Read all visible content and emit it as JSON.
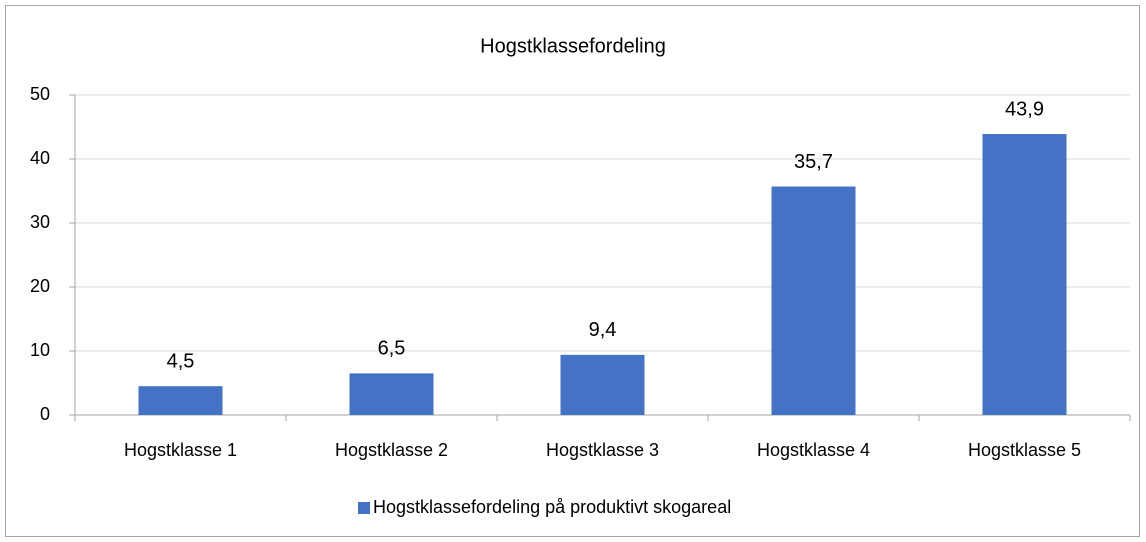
{
  "chart_data": {
    "type": "bar",
    "title": "Hogstklassefordeling",
    "categories": [
      "Hogstklasse 1",
      "Hogstklasse 2",
      "Hogstklasse 3",
      "Hogstklasse 4",
      "Hogstklasse 5"
    ],
    "series": [
      {
        "name": "Hogstklassefordeling på produktivt skogareal",
        "color": "#4472c4",
        "values": [
          4.5,
          6.5,
          9.4,
          35.7,
          43.9
        ],
        "value_labels": [
          "4,5",
          "6,5",
          "9,4",
          "35,7",
          "43,9"
        ]
      }
    ],
    "ylim": [
      0,
      50
    ],
    "yticks": [
      0,
      10,
      20,
      30,
      40,
      50
    ],
    "grid": true,
    "legend": "bottom"
  }
}
